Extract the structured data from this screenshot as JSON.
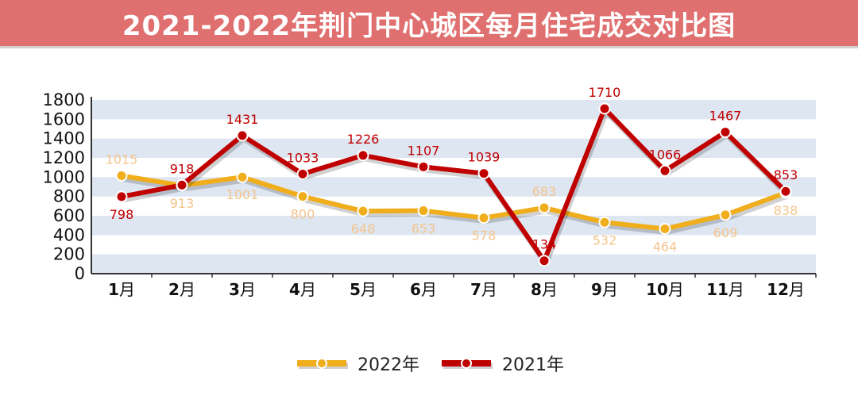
{
  "header": {
    "title": "2021-2022年荆门中心城区每月住宅成交对比图"
  },
  "chart_data": {
    "type": "line",
    "title": "2021-2022年荆门中心城区每月住宅成交对比图",
    "categories": [
      {
        "num": "1",
        "unit": "月"
      },
      {
        "num": "2",
        "unit": "月"
      },
      {
        "num": "3",
        "unit": "月"
      },
      {
        "num": "4",
        "unit": "月"
      },
      {
        "num": "5",
        "unit": "月"
      },
      {
        "num": "6",
        "unit": "月"
      },
      {
        "num": "7",
        "unit": "月"
      },
      {
        "num": "8",
        "unit": "月"
      },
      {
        "num": "9",
        "unit": "月"
      },
      {
        "num": "10",
        "unit": "月"
      },
      {
        "num": "11",
        "unit": "月"
      },
      {
        "num": "12",
        "unit": "月"
      }
    ],
    "yticks": [
      0,
      200,
      400,
      600,
      800,
      1000,
      1200,
      1400,
      1600,
      1800
    ],
    "ylim": [
      0,
      1800
    ],
    "grid": "horizontal-bands",
    "legend_position": "bottom-center",
    "series": [
      {
        "name": "2022年",
        "color": "#f0ad1c",
        "label_color": "#f5c48c",
        "values": [
          1015,
          913,
          1001,
          800,
          648,
          653,
          578,
          683,
          532,
          464,
          609,
          838
        ],
        "label_pos": [
          "above",
          "below",
          "below",
          "below",
          "below",
          "below",
          "below",
          "above",
          "below",
          "below",
          "below",
          "below"
        ]
      },
      {
        "name": "2021年",
        "color": "#c00000",
        "label_color": "#c00000",
        "values": [
          798,
          918,
          1431,
          1033,
          1226,
          1107,
          1039,
          134,
          1710,
          1066,
          1467,
          853
        ],
        "label_pos": [
          "below",
          "above",
          "above",
          "above",
          "above",
          "above",
          "above",
          "above",
          "above",
          "above",
          "above",
          "above"
        ]
      }
    ]
  }
}
